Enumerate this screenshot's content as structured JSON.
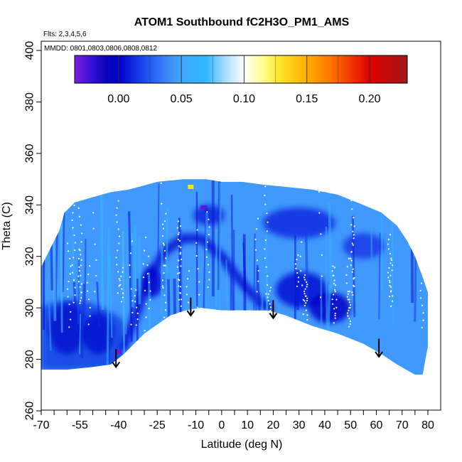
{
  "chart_data": {
    "type": "heatmap",
    "title": "ATOM1 Southbound fC2H3O_PM1_AMS",
    "flights_note": "Flts: 2,3,4,5,6",
    "dates_note": "MMDD: 0801,0803,0806,0808,0812",
    "xlabel": "Latitude (deg N)",
    "ylabel": "Theta (C)",
    "xlim": [
      -70,
      80
    ],
    "ylim": [
      260,
      400
    ],
    "x_ticks": [
      -70,
      -55,
      -40,
      -25,
      -10,
      0,
      10,
      20,
      30,
      40,
      50,
      60,
      70,
      80
    ],
    "x_minor_ticks": [
      -65,
      -60,
      -50,
      -45,
      -35,
      -30,
      -20,
      -15,
      -5,
      5,
      15,
      25,
      35,
      45,
      55,
      65,
      75
    ],
    "y_ticks": [
      260,
      280,
      300,
      320,
      340,
      360,
      380,
      400
    ],
    "grid": false,
    "legend": "top",
    "colorbar": {
      "min": -0.035,
      "max": 0.23,
      "ticks": [
        0.0,
        0.05,
        0.1,
        0.15,
        0.2
      ],
      "tick_labels": [
        "0.00",
        "0.05",
        "0.10",
        "0.15",
        "0.20"
      ],
      "stops": [
        {
          "v": -0.035,
          "color": "#7b1fe0"
        },
        {
          "v": -0.022,
          "color": "#3a10d8"
        },
        {
          "v": -0.01,
          "color": "#0a06b8"
        },
        {
          "v": 0.0,
          "color": "#0000c8"
        },
        {
          "v": 0.02,
          "color": "#1a4af0"
        },
        {
          "v": 0.04,
          "color": "#3f8af8"
        },
        {
          "v": 0.05,
          "color": "#40a8ff"
        },
        {
          "v": 0.07,
          "color": "#30b8ff"
        },
        {
          "v": 0.085,
          "color": "#a8dcff"
        },
        {
          "v": 0.1,
          "color": "#ffffff"
        },
        {
          "v": 0.115,
          "color": "#ffff90"
        },
        {
          "v": 0.13,
          "color": "#ffe020"
        },
        {
          "v": 0.15,
          "color": "#ffb000"
        },
        {
          "v": 0.17,
          "color": "#ff7000"
        },
        {
          "v": 0.2,
          "color": "#e00000"
        },
        {
          "v": 0.23,
          "color": "#a01818"
        }
      ]
    },
    "domain_top": [
      [
        -61,
        337
      ],
      [
        -57,
        341
      ],
      [
        -50,
        343
      ],
      [
        -43,
        345
      ],
      [
        -36,
        346
      ],
      [
        -25,
        349
      ],
      [
        -15,
        350
      ],
      [
        -6,
        350
      ],
      [
        0,
        349
      ],
      [
        8,
        349
      ],
      [
        15,
        348
      ],
      [
        25,
        347
      ],
      [
        35,
        346
      ],
      [
        45,
        344
      ],
      [
        55,
        340
      ],
      [
        62,
        337
      ],
      [
        68,
        332
      ],
      [
        72,
        326
      ],
      [
        75,
        320
      ],
      [
        78,
        312
      ],
      [
        80,
        306
      ]
    ],
    "domain_bottom": [
      [
        -70,
        276
      ],
      [
        -60,
        276
      ],
      [
        -50,
        277
      ],
      [
        -43,
        278
      ],
      [
        -38,
        282
      ],
      [
        -30,
        290
      ],
      [
        -20,
        297
      ],
      [
        -14,
        299
      ],
      [
        -8,
        300
      ],
      [
        0,
        299
      ],
      [
        8,
        299
      ],
      [
        18,
        299
      ],
      [
        25,
        297
      ],
      [
        35,
        293
      ],
      [
        45,
        290
      ],
      [
        55,
        286
      ],
      [
        62,
        282
      ],
      [
        68,
        278
      ],
      [
        75,
        274
      ],
      [
        78,
        274
      ],
      [
        80,
        285
      ]
    ],
    "dark_band": [
      [
        -38,
        285
      ],
      [
        -33,
        298
      ],
      [
        -28,
        312
      ],
      [
        -22,
        322
      ],
      [
        -15,
        327
      ],
      [
        -8,
        327
      ],
      [
        0,
        320
      ],
      [
        6,
        312
      ],
      [
        12,
        305
      ],
      [
        18,
        300
      ]
    ],
    "low_regions": [
      {
        "x": -60,
        "y": 292,
        "rx": 7,
        "ry": 10,
        "value": -0.008
      },
      {
        "x": -48,
        "y": 290,
        "rx": 6,
        "ry": 8,
        "value": -0.005
      },
      {
        "x": -27,
        "y": 310,
        "rx": 4,
        "ry": 6,
        "value": 0.0
      },
      {
        "x": 31,
        "y": 307,
        "rx": 10,
        "ry": 7,
        "value": 0.005
      },
      {
        "x": 42,
        "y": 300,
        "rx": 8,
        "ry": 6,
        "value": -0.002
      },
      {
        "x": 30,
        "y": 333,
        "rx": 14,
        "ry": 6,
        "value": 0.012
      },
      {
        "x": 55,
        "y": 324,
        "rx": 8,
        "ry": 5,
        "value": 0.015
      },
      {
        "x": -5,
        "y": 336,
        "rx": 6,
        "ry": 4,
        "value": 0.01
      }
    ],
    "anomalies": [
      {
        "x": -12,
        "y": 347,
        "value": 0.13
      },
      {
        "x": -40,
        "y": 283,
        "value": -0.03
      },
      {
        "x": -7,
        "y": 339,
        "value": -0.028
      }
    ],
    "arrows": [
      {
        "x": -41,
        "y_top": 284,
        "y_tip": 277
      },
      {
        "x": -12,
        "y_top": 304,
        "y_tip": 297
      },
      {
        "x": 20,
        "y_top": 303,
        "y_tip": 296
      },
      {
        "x": 61,
        "y_top": 288,
        "y_tip": 281
      }
    ]
  }
}
